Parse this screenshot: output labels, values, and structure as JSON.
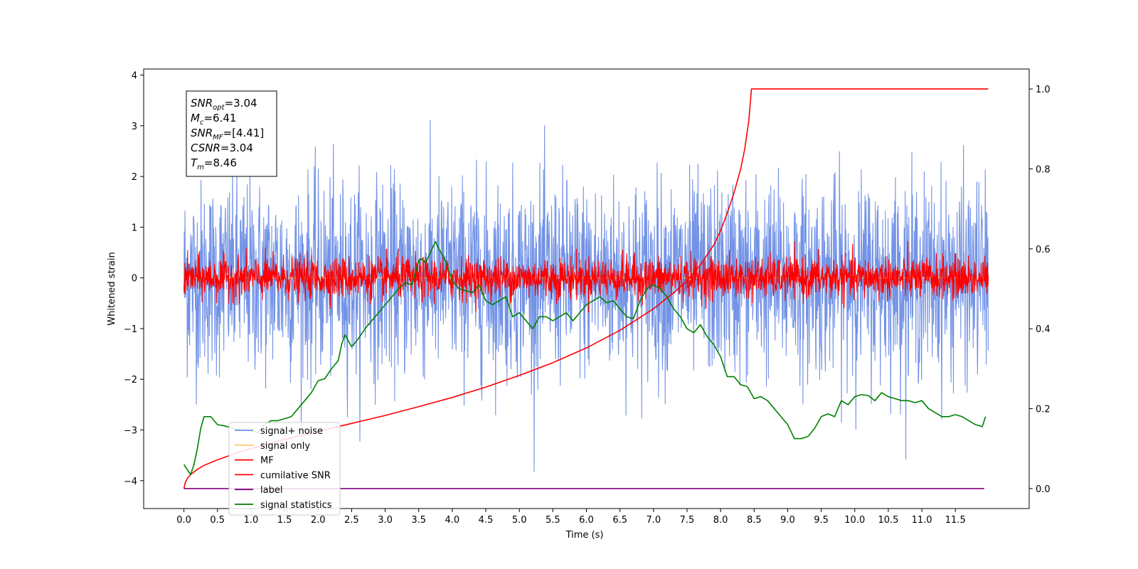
{
  "chart_data": {
    "type": "line",
    "xlabel": "Time (s)",
    "ylabel": "Whitened strain",
    "xlim": [
      -0.6,
      12.6
    ],
    "ylim_left": [
      -4.55,
      4.12
    ],
    "ylim_right": [
      -0.05,
      1.05
    ],
    "x_ticks": [
      "0.0",
      "0.5",
      "1.0",
      "1.5",
      "2.0",
      "2.5",
      "3.0",
      "3.5",
      "4.0",
      "4.5",
      "5.0",
      "5.5",
      "6.0",
      "6.5",
      "7.0",
      "7.5",
      "8.0",
      "8.5",
      "9.0",
      "9.5",
      "10.0",
      "10.5",
      "11.0",
      "11.5"
    ],
    "y_ticks_left": [
      "4",
      "3",
      "2",
      "1",
      "0",
      "−1",
      "−2",
      "−3",
      "−4"
    ],
    "y_ticks_right": [
      "1.0",
      "0.8",
      "0.6",
      "0.4",
      "0.2",
      "0.0"
    ],
    "grid": false,
    "legend_position": "lower-left",
    "annotation": {
      "snr_opt": {
        "base": "SNR",
        "sub": "opt",
        "value": "=3.04"
      },
      "mc": {
        "base": "M",
        "sub": "c",
        "value": "=6.41"
      },
      "snr_mf": {
        "base": "SNR",
        "sub": "MF",
        "value": "=[4.41]"
      },
      "csnr": {
        "base": "CSNR",
        "sub": "",
        "value": "=3.04"
      },
      "tm": {
        "base": "T",
        "sub": "m",
        "value": "=8.46"
      }
    },
    "series": [
      {
        "name": "signal+ noise",
        "color": "#7393e6",
        "axis": "left",
        "style": "noise",
        "mean": 0.0,
        "std": 0.95,
        "x_range": [
          0.0,
          11.99
        ]
      },
      {
        "name": "signal only",
        "color": "#ffcc77",
        "axis": "left",
        "style": "flat",
        "value": 0.0,
        "x_range": [
          0.0,
          11.99
        ]
      },
      {
        "name": "MF",
        "color": "#ff0000",
        "axis": "left",
        "style": "noise",
        "mean": 0.0,
        "std": 0.2,
        "x_range": [
          0.0,
          11.99
        ]
      },
      {
        "name": "cumilative SNR",
        "color": "#ff0000",
        "axis": "right",
        "x": [
          0.0,
          0.02,
          0.05,
          0.1,
          0.2,
          0.3,
          0.5,
          0.8,
          1.0,
          1.5,
          2.0,
          2.5,
          3.0,
          3.5,
          4.0,
          4.5,
          5.0,
          5.5,
          6.0,
          6.5,
          7.0,
          7.3,
          7.5,
          7.7,
          7.9,
          8.0,
          8.1,
          8.2,
          8.3,
          8.36,
          8.42,
          8.46,
          9.0,
          10.0,
          11.0,
          11.99
        ],
        "y": [
          0.0,
          0.015,
          0.025,
          0.035,
          0.048,
          0.058,
          0.072,
          0.09,
          0.1,
          0.123,
          0.143,
          0.163,
          0.183,
          0.205,
          0.228,
          0.254,
          0.283,
          0.315,
          0.352,
          0.396,
          0.45,
          0.49,
          0.52,
          0.56,
          0.61,
          0.645,
          0.69,
          0.74,
          0.8,
          0.85,
          0.92,
          1.0,
          1.0,
          1.0,
          1.0,
          1.0
        ]
      },
      {
        "name": "label",
        "color": "#800080",
        "axis": "right",
        "x": [
          0.0,
          11.93
        ],
        "y": [
          0.0,
          0.0
        ]
      },
      {
        "name": "signal statistics",
        "color": "#008000",
        "axis": "right",
        "x": [
          0.0,
          0.1,
          0.15,
          0.2,
          0.25,
          0.3,
          0.4,
          0.5,
          0.6,
          0.75,
          0.9,
          1.0,
          1.1,
          1.2,
          1.3,
          1.4,
          1.5,
          1.6,
          1.7,
          1.8,
          1.9,
          2.0,
          2.1,
          2.2,
          2.3,
          2.35,
          2.4,
          2.5,
          2.6,
          2.7,
          2.8,
          2.9,
          3.0,
          3.1,
          3.2,
          3.3,
          3.4,
          3.5,
          3.55,
          3.6,
          3.7,
          3.75,
          3.8,
          3.9,
          4.0,
          4.1,
          4.2,
          4.3,
          4.4,
          4.5,
          4.6,
          4.7,
          4.8,
          4.9,
          5.0,
          5.1,
          5.2,
          5.3,
          5.4,
          5.5,
          5.6,
          5.7,
          5.8,
          5.9,
          6.0,
          6.1,
          6.2,
          6.3,
          6.4,
          6.5,
          6.6,
          6.7,
          6.8,
          6.9,
          7.0,
          7.1,
          7.2,
          7.3,
          7.4,
          7.5,
          7.6,
          7.7,
          7.8,
          7.9,
          8.0,
          8.1,
          8.2,
          8.3,
          8.4,
          8.5,
          8.6,
          8.7,
          8.8,
          8.9,
          9.0,
          9.1,
          9.2,
          9.3,
          9.4,
          9.5,
          9.6,
          9.7,
          9.8,
          9.9,
          10.0,
          10.1,
          10.2,
          10.3,
          10.4,
          10.5,
          10.6,
          10.7,
          10.8,
          10.9,
          11.0,
          11.1,
          11.2,
          11.3,
          11.4,
          11.5,
          11.6,
          11.7,
          11.8,
          11.9,
          11.95
        ],
        "y": [
          0.06,
          0.035,
          0.06,
          0.1,
          0.15,
          0.18,
          0.18,
          0.16,
          0.157,
          0.15,
          0.145,
          0.145,
          0.14,
          0.16,
          0.17,
          0.17,
          0.175,
          0.18,
          0.2,
          0.22,
          0.24,
          0.27,
          0.275,
          0.3,
          0.32,
          0.36,
          0.385,
          0.355,
          0.375,
          0.4,
          0.42,
          0.44,
          0.46,
          0.48,
          0.5,
          0.515,
          0.51,
          0.57,
          0.575,
          0.565,
          0.6,
          0.618,
          0.6,
          0.57,
          0.52,
          0.5,
          0.495,
          0.49,
          0.51,
          0.47,
          0.46,
          0.47,
          0.48,
          0.43,
          0.44,
          0.42,
          0.4,
          0.43,
          0.43,
          0.42,
          0.43,
          0.44,
          0.42,
          0.44,
          0.46,
          0.47,
          0.48,
          0.465,
          0.47,
          0.45,
          0.43,
          0.425,
          0.47,
          0.5,
          0.51,
          0.5,
          0.48,
          0.45,
          0.43,
          0.4,
          0.39,
          0.41,
          0.38,
          0.36,
          0.33,
          0.28,
          0.28,
          0.26,
          0.255,
          0.225,
          0.23,
          0.22,
          0.2,
          0.18,
          0.16,
          0.125,
          0.125,
          0.13,
          0.15,
          0.18,
          0.187,
          0.18,
          0.22,
          0.21,
          0.23,
          0.235,
          0.233,
          0.22,
          0.24,
          0.23,
          0.225,
          0.22,
          0.22,
          0.215,
          0.22,
          0.2,
          0.19,
          0.18,
          0.18,
          0.185,
          0.18,
          0.17,
          0.16,
          0.155,
          0.18
        ]
      }
    ]
  }
}
